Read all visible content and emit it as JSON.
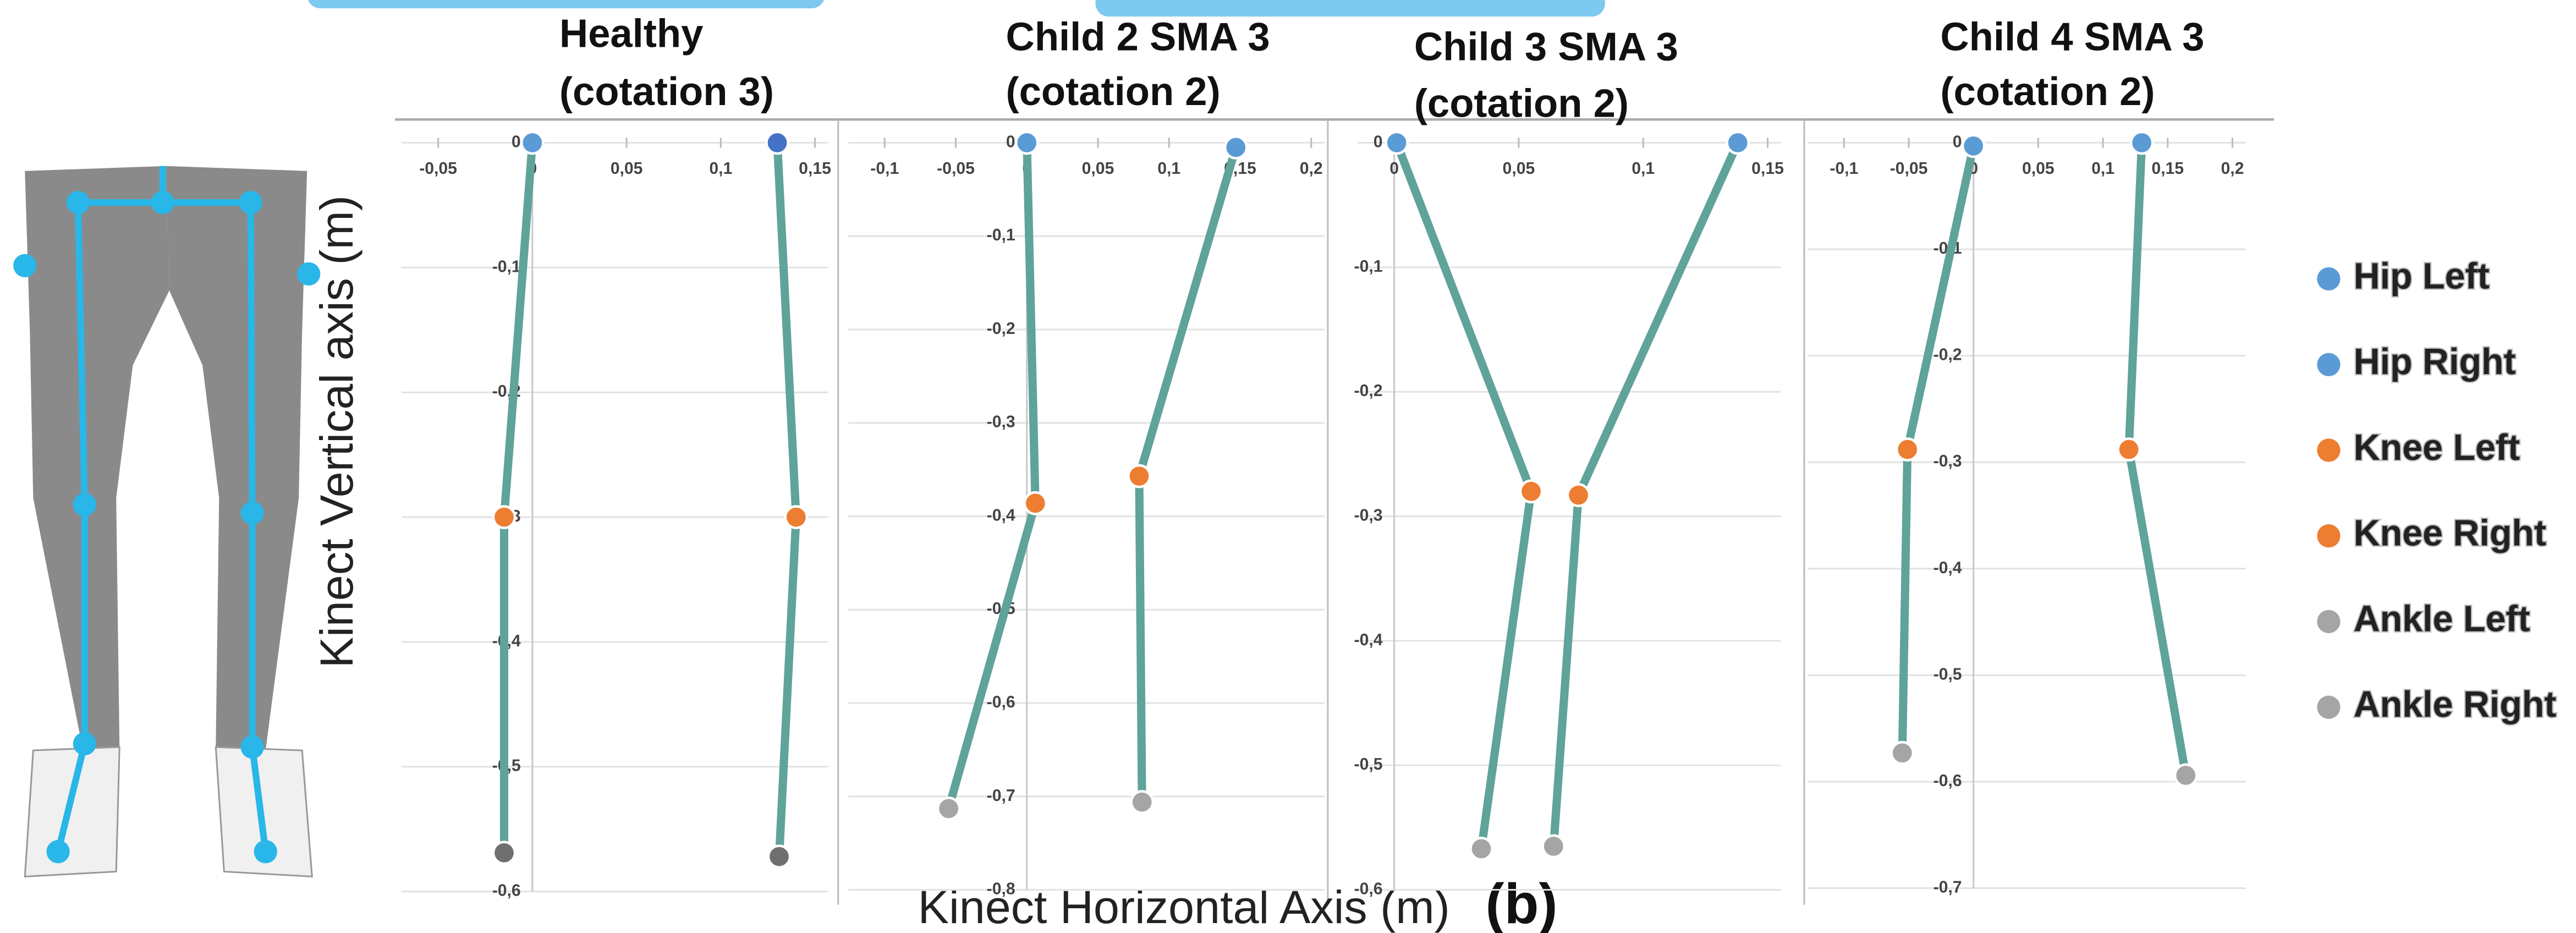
{
  "chart_data": [
    {
      "type": "scatter",
      "title": "Healthy",
      "subtitle": "(cotation 3)",
      "xlim": [
        -0.05,
        0.15
      ],
      "xticks": [
        {
          "value": -0.05,
          "label": "-0,05"
        },
        0,
        {
          "value": 0.05,
          "label": "0,05"
        },
        {
          "value": 0.1,
          "label": "0,1"
        },
        {
          "value": 0.15,
          "label": "0,15"
        }
      ],
      "ylim": [
        -0.6,
        0
      ],
      "yticks": [
        0,
        {
          "value": -0.1,
          "label": "-0,1"
        },
        {
          "value": -0.2,
          "label": "-0,2"
        },
        {
          "value": -0.3,
          "label": "-0,3"
        },
        {
          "value": -0.4,
          "label": "-0,4"
        },
        {
          "value": -0.5,
          "label": "-0,5"
        },
        {
          "value": -0.6,
          "label": "-0,6"
        }
      ],
      "x": [
        0,
        0.13,
        -0.015,
        0.14,
        -0.015,
        0.131
      ],
      "y": [
        0,
        0,
        -0.3,
        -0.3,
        -0.569,
        -0.572
      ],
      "colors": [
        "#5b9bd5",
        "#4472c4",
        "#ed7d31",
        "#ed7d31",
        "#6f6f6f",
        "#6f6f6f"
      ],
      "grid": true
    },
    {
      "type": "scatter",
      "title": "Child 2 SMA 3",
      "subtitle": "(cotation 2)",
      "xlim": [
        -0.1,
        0.2
      ],
      "xticks": [
        {
          "value": -0.1,
          "label": "-0,1"
        },
        {
          "value": -0.05,
          "label": "-0,05"
        },
        0,
        {
          "value": 0.05,
          "label": "0,05"
        },
        {
          "value": 0.1,
          "label": "0,1"
        },
        {
          "value": 0.15,
          "label": "0,15"
        },
        {
          "value": 0.2,
          "label": "0,2"
        }
      ],
      "ylim": [
        -0.8,
        0
      ],
      "yticks": [
        0,
        {
          "value": -0.1,
          "label": "-0,1"
        },
        {
          "value": -0.2,
          "label": "-0,2"
        },
        {
          "value": -0.3,
          "label": "-0,3"
        },
        {
          "value": -0.4,
          "label": "-0,4"
        },
        {
          "value": -0.5,
          "label": "-0,5"
        },
        {
          "value": -0.6,
          "label": "-0,6"
        },
        {
          "value": -0.7,
          "label": "-0,7"
        },
        {
          "value": -0.8,
          "label": "-0,8"
        }
      ],
      "x": [
        0,
        0.147,
        0.006,
        0.079,
        -0.055,
        0.081
      ],
      "y": [
        0,
        -0.005,
        -0.386,
        -0.357,
        -0.713,
        -0.706
      ],
      "colors": [
        "#5b9bd5",
        "#5b9bd5",
        "#ed7d31",
        "#ed7d31",
        "#a5a5a5",
        "#a5a5a5"
      ],
      "grid": true
    },
    {
      "type": "scatter",
      "title": "Child 3 SMA 3",
      "subtitle": "(cotation 2)",
      "xlim": [
        0,
        0.15
      ],
      "xticks": [
        0,
        {
          "value": 0.05,
          "label": "0,05"
        },
        {
          "value": 0.1,
          "label": "0,1"
        },
        {
          "value": 0.15,
          "label": "0,15"
        }
      ],
      "ylim": [
        -0.6,
        0
      ],
      "yticks": [
        0,
        {
          "value": -0.1,
          "label": "-0,1"
        },
        {
          "value": -0.2,
          "label": "-0,2"
        },
        {
          "value": -0.3,
          "label": "-0,3"
        },
        {
          "value": -0.4,
          "label": "-0,4"
        },
        {
          "value": -0.5,
          "label": "-0,5"
        },
        {
          "value": -0.6,
          "label": "-0,6"
        }
      ],
      "x": [
        0.001,
        0.138,
        0.055,
        0.074,
        0.035,
        0.064
      ],
      "y": [
        0,
        0,
        -0.28,
        -0.283,
        -0.567,
        -0.565
      ],
      "colors": [
        "#5b9bd5",
        "#5b9bd5",
        "#ed7d31",
        "#ed7d31",
        "#a5a5a5",
        "#a5a5a5"
      ],
      "grid": true
    },
    {
      "type": "scatter",
      "title": "Child 4 SMA 3",
      "subtitle": "(cotation 2)",
      "xlim": [
        -0.1,
        0.2
      ],
      "xticks": [
        {
          "value": -0.1,
          "label": "-0,1"
        },
        {
          "value": -0.05,
          "label": "-0,05"
        },
        0,
        {
          "value": 0.05,
          "label": "0,05"
        },
        {
          "value": 0.1,
          "label": "0,1"
        },
        {
          "value": 0.15,
          "label": "0,15"
        },
        {
          "value": 0.2,
          "label": "0,2"
        }
      ],
      "ylim": [
        -0.7,
        0
      ],
      "yticks": [
        0,
        {
          "value": -0.1,
          "label": "-0,1"
        },
        {
          "value": -0.2,
          "label": "-0,2"
        },
        {
          "value": -0.3,
          "label": "-0,3"
        },
        {
          "value": -0.4,
          "label": "-0,4"
        },
        {
          "value": -0.5,
          "label": "-0,5"
        },
        {
          "value": -0.6,
          "label": "-0,6"
        },
        {
          "value": -0.7,
          "label": "-0,7"
        }
      ],
      "x": [
        0,
        0.13,
        -0.051,
        0.12,
        -0.055,
        0.164
      ],
      "y": [
        -0.003,
        0,
        -0.288,
        -0.288,
        -0.573,
        -0.594
      ],
      "colors": [
        "#5b9bd5",
        "#5b9bd5",
        "#ed7d31",
        "#ed7d31",
        "#a5a5a5",
        "#a5a5a5"
      ],
      "grid": true
    }
  ],
  "legend": [
    {
      "name": "Hip Left",
      "color": "#5b9bd5"
    },
    {
      "name": "Hip Right",
      "color": "#5b9bd5"
    },
    {
      "name": "Knee Left",
      "color": "#ed7d31"
    },
    {
      "name": "Knee Right",
      "color": "#ed7d31"
    },
    {
      "name": "Ankle Left",
      "color": "#a5a5a5"
    },
    {
      "name": "Ankle Right",
      "color": "#a5a5a5"
    }
  ],
  "y_axis_label": "Kinect Vertical axis (m)",
  "x_axis_label": "Kinect Horizontal Axis (m)",
  "panel_label": "(b)"
}
